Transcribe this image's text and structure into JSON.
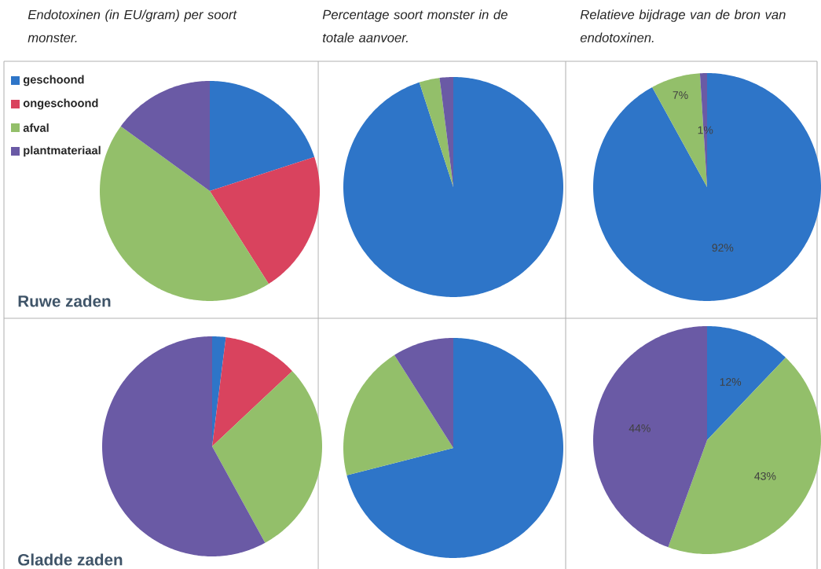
{
  "chart_data": [
    {
      "type": "pie",
      "title": "Endotoxinen (in EU/gram) per soort monster.",
      "categories": [
        "geschoond",
        "ongeschoond",
        "afval",
        "plantmateriaal"
      ],
      "values": [
        20,
        21,
        44,
        15
      ],
      "colors": [
        "#2e75c8",
        "#d9435e",
        "#93bf6a",
        "#6a5aa5"
      ],
      "legend": "top left",
      "annotations": [
        "Ruwe zaden"
      ]
    },
    {
      "type": "pie",
      "title": "Percentage soort monster in de totale aanvoer.",
      "categories": [
        null,
        null,
        null,
        null
      ],
      "values": [
        95,
        null,
        3,
        2
      ],
      "colors": [
        "#2e75c8",
        "#d9435e",
        "#93bf6a",
        "#6a5aa5"
      ]
    },
    {
      "type": "pie",
      "title": "Relatieve bijdrage van de bron van endotoxinen.",
      "categories": [
        null,
        null,
        null,
        null
      ],
      "values": [
        92,
        null,
        7,
        1
      ],
      "colors": [
        "#2e75c8",
        "#d9435e",
        "#93bf6a",
        "#6a5aa5"
      ],
      "value_labels": [
        "92%",
        null,
        "7%",
        "1%"
      ]
    },
    {
      "type": "pie",
      "categories": [
        null,
        null,
        null,
        null
      ],
      "values": [
        2,
        11,
        29,
        58
      ],
      "colors": [
        "#2e75c8",
        "#d9435e",
        "#93bf6a",
        "#6a5aa5"
      ],
      "annotations": [
        "Gladde zaden"
      ]
    },
    {
      "type": "pie",
      "categories": [
        null,
        null,
        null,
        null
      ],
      "values": [
        71,
        null,
        20,
        9
      ],
      "colors": [
        "#2e75c8",
        "#d9435e",
        "#93bf6a",
        "#6a5aa5"
      ]
    },
    {
      "type": "pie",
      "categories": [
        null,
        null,
        null,
        null
      ],
      "values": [
        12,
        null,
        43,
        44
      ],
      "colors": [
        "#2e75c8",
        "#d9435e",
        "#93bf6a",
        "#6a5aa5"
      ],
      "value_labels": [
        "12%",
        null,
        "43%",
        "44%"
      ]
    }
  ]
}
